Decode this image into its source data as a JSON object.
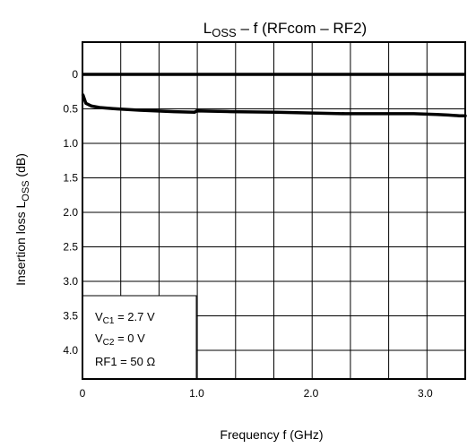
{
  "chart_data": {
    "type": "line",
    "title": {
      "main": "L",
      "sub": "OSS",
      "rest": " – f (RFcom – RF2)"
    },
    "xlabel": "Frequency   f   (GHz)",
    "ylabel": {
      "main": "Insertion loss   L",
      "sub": "OSS",
      "rest": "   (dB)"
    },
    "xlim": [
      0,
      3.35
    ],
    "ylim": [
      0,
      4.5
    ],
    "y_inverted": true,
    "x_ticks": [
      {
        "value": 0,
        "label": "0"
      },
      {
        "value": 1.0,
        "label": "1.0"
      },
      {
        "value": 2.0,
        "label": "2.0"
      },
      {
        "value": 3.0,
        "label": "3.0"
      }
    ],
    "y_ticks": [
      {
        "value": 0,
        "label": "0"
      },
      {
        "value": 0.5,
        "label": "0.5"
      },
      {
        "value": 1.0,
        "label": "1.0"
      },
      {
        "value": 1.5,
        "label": "1.5"
      },
      {
        "value": 2.0,
        "label": "2.0"
      },
      {
        "value": 2.5,
        "label": "2.5"
      },
      {
        "value": 3.0,
        "label": "3.0"
      },
      {
        "value": 3.5,
        "label": "3.5"
      },
      {
        "value": 4.0,
        "label": "4.0"
      }
    ],
    "grid": true,
    "grid_x_step": 0.335,
    "grid_y_step": 0.5,
    "reference_line_y": 0,
    "series": [
      {
        "x": [
          0.005,
          0.03,
          0.08,
          0.15,
          0.3,
          0.5,
          0.8,
          0.98,
          1.0,
          1.3,
          1.7,
          2.0,
          2.3,
          2.6,
          2.9,
          3.1,
          3.2,
          3.3,
          3.35
        ],
        "y": [
          0.3,
          0.42,
          0.46,
          0.48,
          0.5,
          0.52,
          0.54,
          0.55,
          0.53,
          0.54,
          0.55,
          0.56,
          0.57,
          0.57,
          0.57,
          0.58,
          0.59,
          0.6,
          0.6
        ]
      }
    ],
    "conditions": [
      {
        "main": "V",
        "sub": "C1",
        "rest": " = 2.7 V"
      },
      {
        "main": "V",
        "sub": "C2",
        "rest": " = 0 V"
      },
      {
        "main": "RF1 = 50 Ω",
        "sub": "",
        "rest": ""
      }
    ]
  }
}
